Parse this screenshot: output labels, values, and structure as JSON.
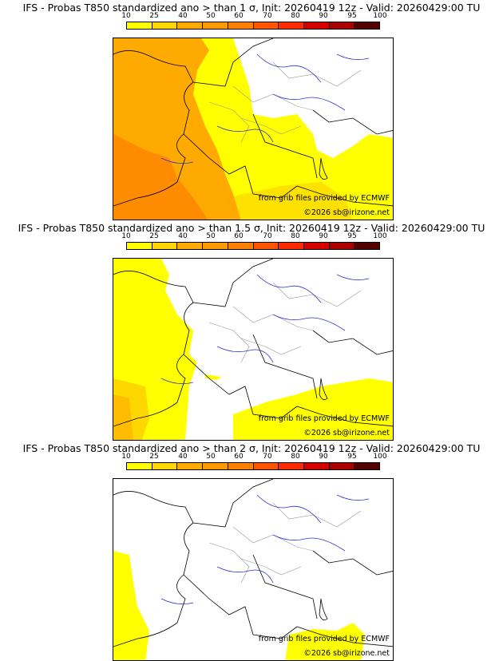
{
  "colors": [
    "#ffff00",
    "#ffd700",
    "#ffaa00",
    "#ff9900",
    "#ff7f00",
    "#ff5500",
    "#ff2a00",
    "#d40000",
    "#aa0000",
    "#550000"
  ],
  "ticks": [
    "10",
    "25",
    "40",
    "50",
    "60",
    "70",
    "80",
    "90",
    "95",
    "100"
  ],
  "panels": [
    {
      "title": "IFS - Probas T850  standardized ano > than 1 σ, Init: 20260419 12z - Valid: 20260429:00 TU",
      "credit_line1": "from grib files provided by ECMWF",
      "credit_line2": "©2026 sb@irizone.net"
    },
    {
      "title": "IFS - Probas T850  standardized ano > than 1.5 σ, Init: 20260419 12z - Valid: 20260429:00 TU",
      "credit_line1": "from grib files provided by ECMWF",
      "credit_line2": "©2026 sb@irizone.net"
    },
    {
      "title": "IFS - Probas T850  standardized ano > than 2 σ, Init: 20260419 12z - Valid: 20260429:00 TU",
      "credit_line1": "from grib files provided by ECMWF",
      "credit_line2": "©2026 sb@irizone.net"
    }
  ]
}
